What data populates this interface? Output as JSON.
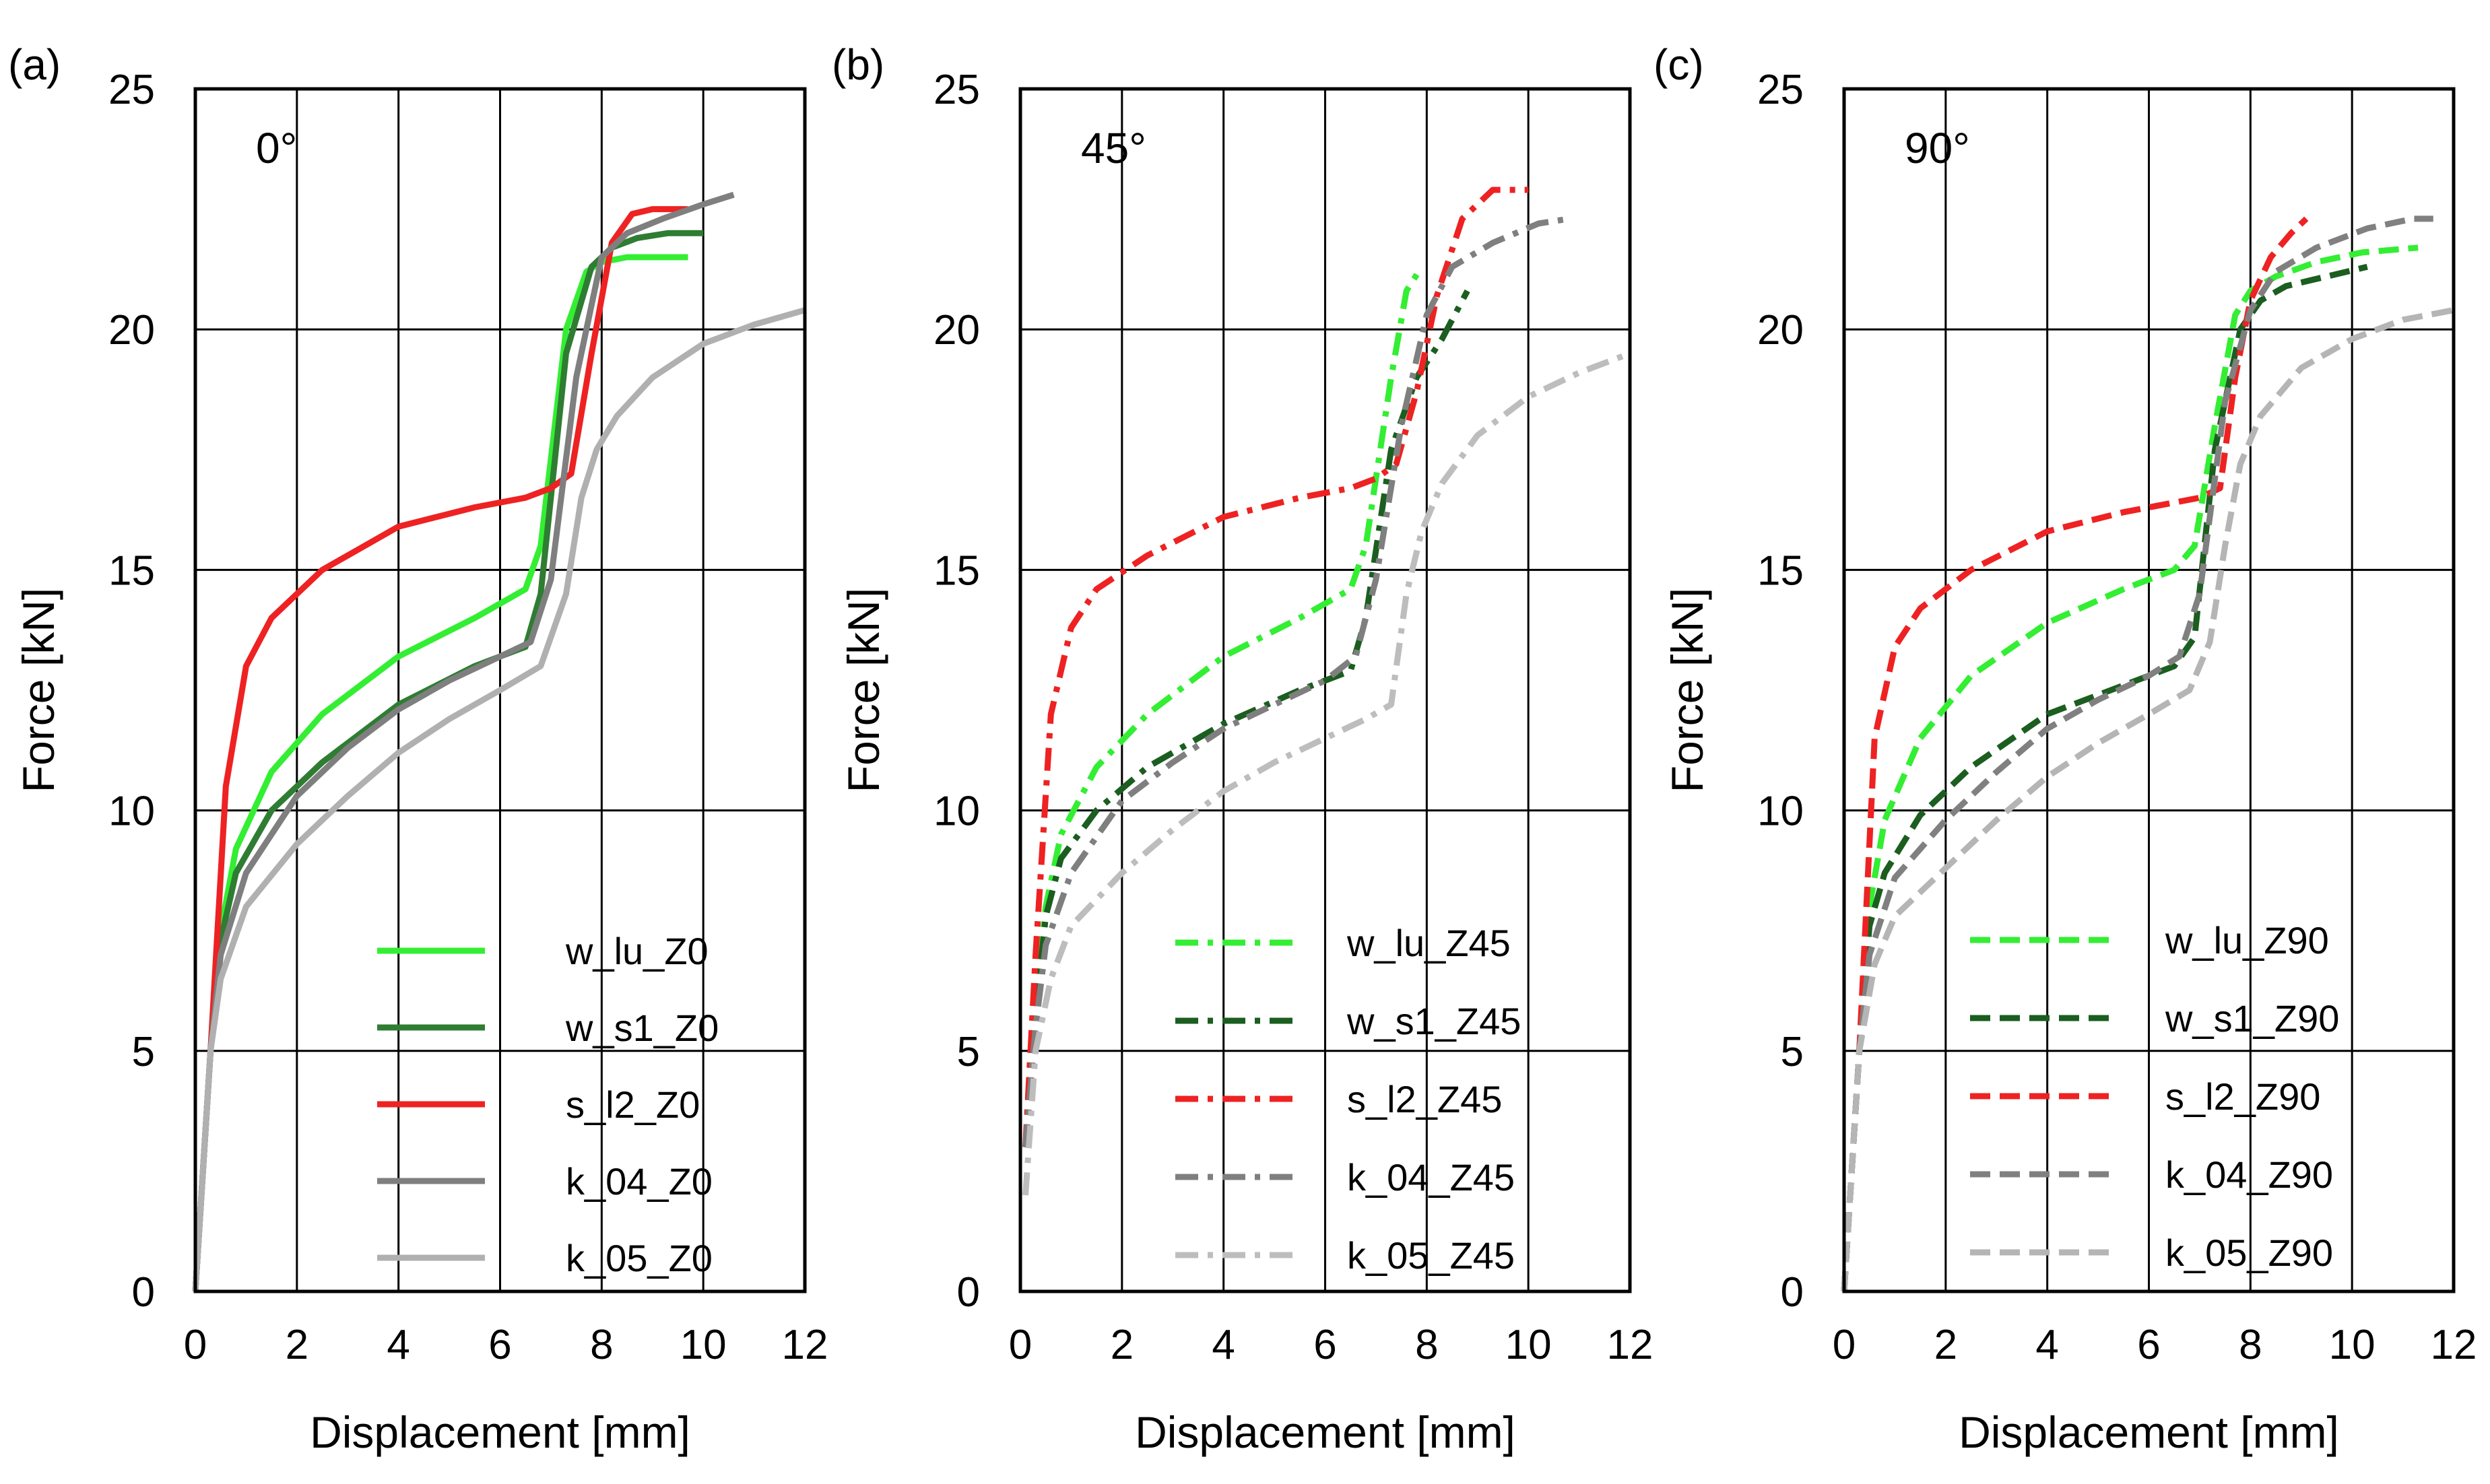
{
  "chart_data": [
    {
      "type": "line",
      "panel": "(a)",
      "title": "0°",
      "xlabel": "Displacement [mm]",
      "ylabel": "Force [kN]",
      "xlim": [
        0,
        12
      ],
      "ylim": [
        0,
        25
      ],
      "xticks": [
        "0",
        "2",
        "4",
        "6",
        "8",
        "10",
        "12"
      ],
      "yticks": [
        "0",
        "5",
        "10",
        "15",
        "20",
        "25"
      ],
      "line_style": "solid",
      "series": [
        {
          "name": "w_lu_Z0",
          "color": "#33ee33",
          "x": [
            0,
            0.3,
            0.5,
            0.8,
            1.5,
            2.5,
            4,
            5.5,
            6.5,
            6.8,
            7.3,
            7.7,
            8.0,
            8.5,
            9.0,
            9.7
          ],
          "y": [
            0,
            5,
            7.5,
            9.2,
            10.8,
            12,
            13.2,
            14,
            14.6,
            15.5,
            20,
            21.2,
            21.4,
            21.5,
            21.5,
            21.5
          ]
        },
        {
          "name": "w_s1_Z0",
          "color": "#2e7d32",
          "x": [
            0,
            0.3,
            0.5,
            0.8,
            1.5,
            2.5,
            4,
            5.5,
            6.5,
            6.8,
            7.3,
            7.8,
            8.2,
            8.7,
            9.3,
            10.0
          ],
          "y": [
            0,
            5,
            7.3,
            8.7,
            10,
            11,
            12.2,
            13,
            13.4,
            14.5,
            19.5,
            21.3,
            21.7,
            21.9,
            22,
            22
          ]
        },
        {
          "name": "s_l2_Z0",
          "color": "#ee2222",
          "x": [
            0,
            0.3,
            0.6,
            1.0,
            1.5,
            2.5,
            4,
            5.5,
            6.5,
            7.0,
            7.4,
            7.8,
            8.2,
            8.6,
            9.0,
            9.7
          ],
          "y": [
            0,
            5,
            10.5,
            13,
            14,
            15,
            15.9,
            16.3,
            16.5,
            16.7,
            17,
            19.5,
            21.8,
            22.4,
            22.5,
            22.5
          ]
        },
        {
          "name": "k_04_Z0",
          "color": "#7f7f7f",
          "x": [
            0,
            0.3,
            0.5,
            1.0,
            2,
            3,
            4,
            5,
            6,
            6.6,
            7.0,
            7.5,
            8.0,
            8.5,
            9.2,
            10.0,
            10.6
          ],
          "y": [
            0,
            5,
            7,
            8.7,
            10.3,
            11.3,
            12.1,
            12.7,
            13.2,
            13.5,
            14.8,
            19,
            21.5,
            22,
            22.3,
            22.6,
            22.8
          ]
        },
        {
          "name": "k_05_Z0",
          "color": "#b0b0b0",
          "x": [
            0,
            0.3,
            0.5,
            1.0,
            2,
            3,
            4,
            5,
            6,
            6.8,
            7.3,
            7.6,
            7.9,
            8.3,
            9,
            10,
            11,
            12
          ],
          "y": [
            0,
            5,
            6.5,
            8,
            9.3,
            10.3,
            11.2,
            11.9,
            12.5,
            13,
            14.5,
            16.5,
            17.5,
            18.2,
            19,
            19.7,
            20.1,
            20.4
          ]
        }
      ]
    },
    {
      "type": "line",
      "panel": "(b)",
      "title": "45°",
      "xlabel": "Displacement [mm]",
      "ylabel": "Force [kN]",
      "xlim": [
        0,
        12
      ],
      "ylim": [
        0,
        25
      ],
      "xticks": [
        "0",
        "2",
        "4",
        "6",
        "8",
        "10",
        "12"
      ],
      "yticks": [
        "0",
        "5",
        "10",
        "15",
        "20",
        "25"
      ],
      "line_style": "dash-dot",
      "series": [
        {
          "name": "w_lu_Z45",
          "color": "#33ee33",
          "x": [
            0.1,
            0.3,
            0.5,
            0.8,
            1.5,
            2.5,
            4,
            5.5,
            6.5,
            6.8,
            7.3,
            7.6,
            7.9
          ],
          "y": [
            3,
            6,
            8,
            9.5,
            10.9,
            12,
            13.2,
            14,
            14.6,
            15.5,
            19,
            20.8,
            21.3
          ]
        },
        {
          "name": "w_s1_Z45",
          "color": "#1b5e20",
          "x": [
            0.1,
            0.3,
            0.5,
            0.8,
            1.5,
            2.5,
            4,
            5.5,
            6.5,
            6.8,
            7.3,
            7.8,
            8.3,
            8.8
          ],
          "y": [
            3,
            5.8,
            7.8,
            9,
            10,
            10.9,
            11.8,
            12.5,
            12.9,
            14,
            17.5,
            19,
            19.8,
            20.8
          ]
        },
        {
          "name": "s_l2_Z45",
          "color": "#ee2222",
          "x": [
            0.1,
            0.3,
            0.6,
            1.0,
            1.5,
            2.5,
            4,
            5.5,
            6.5,
            7.0,
            7.4,
            7.8,
            8.2,
            8.7,
            9.3,
            10.0
          ],
          "y": [
            3,
            7,
            12,
            13.8,
            14.6,
            15.3,
            16.1,
            16.5,
            16.7,
            16.9,
            17.2,
            18.7,
            20.7,
            22.3,
            22.9,
            22.9
          ]
        },
        {
          "name": "k_04_Z45",
          "color": "#7f7f7f",
          "x": [
            0.1,
            0.3,
            0.5,
            1.0,
            2,
            3,
            4,
            5,
            6,
            6.6,
            7.0,
            7.5,
            8.0,
            8.5,
            9.3,
            10.2,
            10.8
          ],
          "y": [
            3,
            5.5,
            7.2,
            8.7,
            10.2,
            11,
            11.7,
            12.2,
            12.7,
            13.2,
            14.8,
            18,
            20.3,
            21.3,
            21.8,
            22.2,
            22.3
          ]
        },
        {
          "name": "k_05_Z45",
          "color": "#bdbdbd",
          "x": [
            0.1,
            0.3,
            0.6,
            1.0,
            2,
            3,
            4,
            5,
            6,
            6.8,
            7.3,
            7.6,
            7.9,
            8.3,
            9,
            10,
            11,
            12
          ],
          "y": [
            2,
            5,
            6.5,
            7.6,
            8.7,
            9.6,
            10.4,
            11,
            11.5,
            11.9,
            12.2,
            14.5,
            15.8,
            16.8,
            17.8,
            18.6,
            19.1,
            19.5
          ]
        }
      ]
    },
    {
      "type": "line",
      "panel": "(c)",
      "title": "90°",
      "xlabel": "Displacement [mm]",
      "ylabel": "Force [kN]",
      "xlim": [
        0,
        12
      ],
      "ylim": [
        0,
        25
      ],
      "xticks": [
        "0",
        "2",
        "4",
        "6",
        "8",
        "10",
        "12"
      ],
      "yticks": [
        "0",
        "5",
        "10",
        "15",
        "20",
        "25"
      ],
      "line_style": "dashed",
      "series": [
        {
          "name": "w_lu_Z90",
          "color": "#33ee33",
          "x": [
            0,
            0.3,
            0.5,
            0.8,
            1.5,
            2.5,
            4,
            5.5,
            6.5,
            6.9,
            7.3,
            7.7,
            8.0,
            8.5,
            9.3,
            10.2,
            11.3
          ],
          "y": [
            0,
            5,
            8,
            9.8,
            11.5,
            12.8,
            13.9,
            14.6,
            15,
            15.5,
            18,
            20.3,
            20.8,
            21.1,
            21.4,
            21.6,
            21.7
          ]
        },
        {
          "name": "w_s1_Z90",
          "color": "#1b5e20",
          "x": [
            0,
            0.3,
            0.5,
            0.8,
            1.5,
            2.5,
            4,
            5.5,
            6.5,
            6.9,
            7.3,
            7.8,
            8.2,
            8.7,
            9.5,
            10.3
          ],
          "y": [
            0,
            5,
            7.6,
            8.7,
            9.9,
            10.9,
            12,
            12.6,
            13,
            13.6,
            17.5,
            20,
            20.6,
            20.9,
            21.1,
            21.3
          ]
        },
        {
          "name": "s_l2_Z90",
          "color": "#ee2222",
          "x": [
            0,
            0.3,
            0.6,
            1.0,
            1.5,
            2.5,
            4,
            5.5,
            6.5,
            7.0,
            7.4,
            7.7,
            8.0,
            8.4,
            8.8,
            9.1
          ],
          "y": [
            0,
            5,
            11.5,
            13.4,
            14.2,
            15,
            15.8,
            16.2,
            16.4,
            16.5,
            16.7,
            19,
            20.6,
            21.5,
            22,
            22.3
          ]
        },
        {
          "name": "k_04_Z90",
          "color": "#808080",
          "x": [
            0,
            0.3,
            0.5,
            1.0,
            2,
            3,
            4,
            5,
            6,
            6.6,
            7.0,
            7.5,
            8.0,
            8.5,
            9.3,
            10.3,
            11.2,
            11.6
          ],
          "y": [
            0,
            5,
            7,
            8.6,
            9.8,
            10.8,
            11.7,
            12.3,
            12.8,
            13.2,
            14.5,
            18.5,
            20.4,
            21.2,
            21.7,
            22.1,
            22.3,
            22.3
          ]
        },
        {
          "name": "k_05_Z90",
          "color": "#b5b5b5",
          "x": [
            0,
            0.3,
            0.6,
            1.0,
            2,
            3,
            4,
            5,
            6,
            6.8,
            7.2,
            7.5,
            7.8,
            8.2,
            9,
            10,
            11,
            12
          ],
          "y": [
            0,
            5,
            6.8,
            7.8,
            8.8,
            9.8,
            10.7,
            11.4,
            12,
            12.5,
            13.5,
            15.5,
            17.2,
            18.2,
            19.2,
            19.8,
            20.2,
            20.4
          ]
        }
      ]
    }
  ]
}
